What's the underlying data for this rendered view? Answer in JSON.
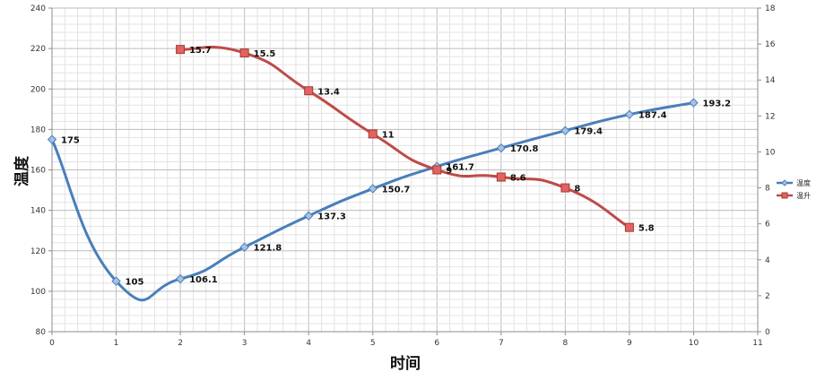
{
  "chart_data": {
    "type": "line",
    "xlabel": "时间",
    "ylabel": "温度",
    "y2label": "",
    "xlim": [
      0,
      11
    ],
    "ylim": [
      80,
      240
    ],
    "y2lim": [
      0,
      18
    ],
    "x_ticks": [
      0,
      1,
      2,
      3,
      4,
      5,
      6,
      7,
      8,
      9,
      10,
      11
    ],
    "y_ticks": [
      80,
      100,
      120,
      140,
      160,
      180,
      200,
      220,
      240
    ],
    "y2_ticks": [
      0,
      2,
      4,
      6,
      8,
      10,
      12,
      14,
      16,
      18
    ],
    "grid": true,
    "legend_position": "right",
    "series": [
      {
        "name": "温度",
        "axis": "left",
        "color": "#4a7ebb",
        "marker": "diamond",
        "x": [
          0,
          1,
          2,
          3,
          4,
          5,
          6,
          7,
          8,
          9,
          10
        ],
        "values": [
          175,
          105,
          106.1,
          121.8,
          137.3,
          150.7,
          161.7,
          170.8,
          179.4,
          187.4,
          193.2
        ],
        "labels": [
          "175",
          "105",
          "106.1",
          "121.8",
          "137.3",
          "150.7",
          "161.7",
          "170.8",
          "179.4",
          "187.4",
          "193.2"
        ]
      },
      {
        "name": "温升",
        "axis": "right",
        "color": "#be4b48",
        "marker": "square",
        "x": [
          2,
          3,
          4,
          5,
          6,
          7,
          8,
          9
        ],
        "values": [
          15.7,
          15.5,
          13.4,
          11,
          9,
          8.6,
          8,
          5.8
        ],
        "labels": [
          "15.7",
          "15.5",
          "13.4",
          "11",
          "9",
          "8.6",
          "8",
          "5.8"
        ]
      }
    ]
  }
}
